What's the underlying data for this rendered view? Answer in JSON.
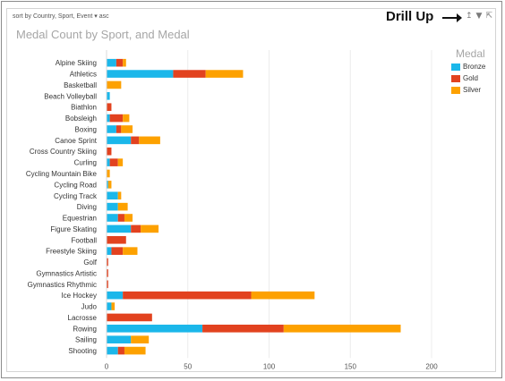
{
  "header": {
    "sort_text": "sort by  Country, Sport, Event  ▾  asc",
    "drill_up_label": "Drill Up",
    "icons": [
      "drill-up-icon",
      "filter-icon",
      "expand-icon"
    ]
  },
  "legend": {
    "title": "Medal",
    "items": [
      {
        "name": "Bronze",
        "color": "#1bb7ea"
      },
      {
        "name": "Gold",
        "color": "#e2421f"
      },
      {
        "name": "Silver",
        "color": "#fda100"
      }
    ]
  },
  "chart_data": {
    "type": "bar",
    "orientation": "horizontal",
    "stacked": true,
    "title": "Medal Count by Sport, and Medal",
    "xlabel": "",
    "ylabel": "",
    "xlim": [
      0,
      200
    ],
    "xticks": [
      0,
      50,
      100,
      150,
      200
    ],
    "grid": true,
    "legend_position": "top-right",
    "categories": [
      "Alpine Skiing",
      "Athletics",
      "Basketball",
      "Beach Volleyball",
      "Biathlon",
      "Bobsleigh",
      "Boxing",
      "Canoe Sprint",
      "Cross Country Skiing",
      "Curling",
      "Cycling Mountain Bike",
      "Cycling Road",
      "Cycling Track",
      "Diving",
      "Equestrian",
      "Figure Skating",
      "Football",
      "Freestyle Skiing",
      "Golf",
      "Gymnastics Artistic",
      "Gymnastics Rhythmic",
      "Ice Hockey",
      "Judo",
      "Lacrosse",
      "Rowing",
      "Sailing",
      "Shooting"
    ],
    "series": [
      {
        "name": "Bronze",
        "color": "#1bb7ea",
        "values": [
          6,
          41,
          0,
          2,
          0,
          2,
          6,
          15,
          0,
          2,
          0,
          1,
          7,
          7,
          7,
          15,
          0,
          3,
          0,
          0,
          0,
          10,
          3,
          0,
          59,
          15,
          7
        ]
      },
      {
        "name": "Gold",
        "color": "#e2421f",
        "values": [
          4,
          20,
          0,
          0,
          3,
          8,
          3,
          5,
          3,
          5,
          0,
          0,
          0,
          0,
          4,
          6,
          12,
          7,
          1,
          1,
          1,
          79,
          0,
          28,
          50,
          0,
          4
        ]
      },
      {
        "name": "Silver",
        "color": "#fda100",
        "values": [
          2,
          23,
          9,
          0,
          0,
          4,
          7,
          13,
          0,
          3,
          2,
          2,
          2,
          6,
          5,
          11,
          0,
          9,
          0,
          0,
          0,
          39,
          2,
          0,
          72,
          11,
          13
        ]
      }
    ]
  }
}
